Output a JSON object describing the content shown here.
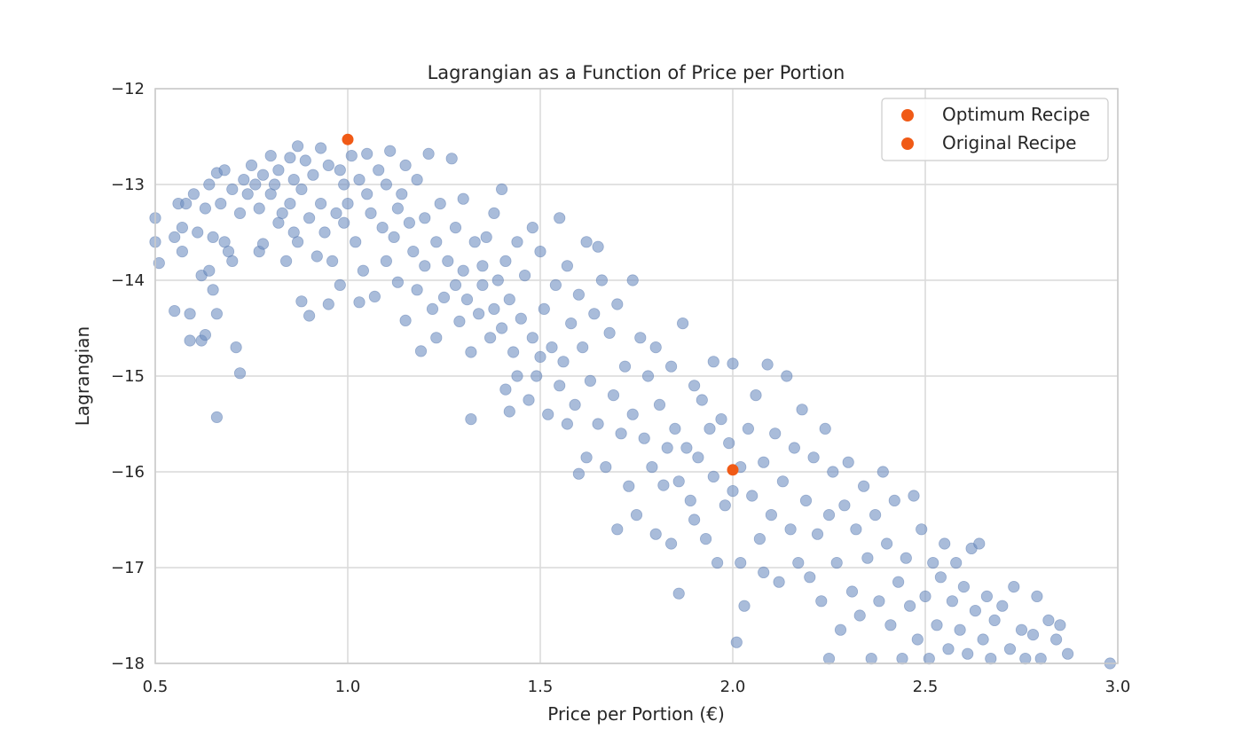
{
  "chart_data": {
    "type": "scatter",
    "title": "Lagrangian as a Function of Price per Portion",
    "xlabel": "Price per Portion (€)",
    "ylabel": "Lagrangian",
    "xlim": [
      0.5,
      3.0
    ],
    "ylim": [
      -18,
      -12
    ],
    "xticks": [
      "0.5",
      "1.0",
      "1.5",
      "2.0",
      "2.5",
      "3.0"
    ],
    "yticks": [
      "−12",
      "−13",
      "−14",
      "−15",
      "−16",
      "−17",
      "−18"
    ],
    "grid": true,
    "legend_position": "top-right",
    "colors": {
      "cloud": "#6f8fc2",
      "highlight": "#f05a16",
      "grid": "#d9d9d9",
      "frame": "#cccccc"
    },
    "series": [
      {
        "name": "Optimum Recipe",
        "x": [
          1.0
        ],
        "y": [
          -12.53
        ]
      },
      {
        "name": "Original Recipe",
        "x": [
          2.0
        ],
        "y": [
          -15.98
        ]
      }
    ],
    "cloud": {
      "points": [
        [
          0.5,
          -13.35
        ],
        [
          0.5,
          -13.6
        ],
        [
          0.51,
          -13.82
        ],
        [
          0.55,
          -13.55
        ],
        [
          0.55,
          -14.32
        ],
        [
          0.56,
          -13.2
        ],
        [
          0.57,
          -13.45
        ],
        [
          0.57,
          -13.7
        ],
        [
          0.58,
          -13.2
        ],
        [
          0.59,
          -14.35
        ],
        [
          0.59,
          -14.63
        ],
        [
          0.6,
          -13.1
        ],
        [
          0.61,
          -13.5
        ],
        [
          0.62,
          -14.63
        ],
        [
          0.62,
          -13.95
        ],
        [
          0.63,
          -13.25
        ],
        [
          0.63,
          -14.57
        ],
        [
          0.64,
          -13.0
        ],
        [
          0.64,
          -13.9
        ],
        [
          0.65,
          -14.1
        ],
        [
          0.65,
          -13.55
        ],
        [
          0.66,
          -12.88
        ],
        [
          0.66,
          -14.35
        ],
        [
          0.66,
          -15.43
        ],
        [
          0.67,
          -13.2
        ],
        [
          0.68,
          -12.85
        ],
        [
          0.68,
          -13.6
        ],
        [
          0.69,
          -13.7
        ],
        [
          0.7,
          -13.05
        ],
        [
          0.7,
          -13.8
        ],
        [
          0.71,
          -14.7
        ],
        [
          0.72,
          -14.97
        ],
        [
          0.72,
          -13.3
        ],
        [
          0.73,
          -12.95
        ],
        [
          0.74,
          -13.1
        ],
        [
          0.75,
          -12.8
        ],
        [
          0.76,
          -13.0
        ],
        [
          0.77,
          -13.7
        ],
        [
          0.77,
          -13.25
        ],
        [
          0.78,
          -13.62
        ],
        [
          0.78,
          -12.9
        ],
        [
          0.8,
          -12.7
        ],
        [
          0.8,
          -13.1
        ],
        [
          0.81,
          -13.0
        ],
        [
          0.82,
          -13.4
        ],
        [
          0.82,
          -12.85
        ],
        [
          0.83,
          -13.3
        ],
        [
          0.84,
          -13.8
        ],
        [
          0.85,
          -12.72
        ],
        [
          0.85,
          -13.2
        ],
        [
          0.86,
          -13.5
        ],
        [
          0.86,
          -12.95
        ],
        [
          0.87,
          -13.6
        ],
        [
          0.87,
          -12.6
        ],
        [
          0.88,
          -14.22
        ],
        [
          0.88,
          -13.05
        ],
        [
          0.89,
          -12.75
        ],
        [
          0.9,
          -14.37
        ],
        [
          0.9,
          -13.35
        ],
        [
          0.91,
          -12.9
        ],
        [
          0.92,
          -13.75
        ],
        [
          0.93,
          -13.2
        ],
        [
          0.93,
          -12.62
        ],
        [
          0.94,
          -13.5
        ],
        [
          0.95,
          -14.25
        ],
        [
          0.95,
          -12.8
        ],
        [
          0.96,
          -13.8
        ],
        [
          0.97,
          -13.3
        ],
        [
          0.98,
          -14.05
        ],
        [
          0.98,
          -12.85
        ],
        [
          0.99,
          -13.4
        ],
        [
          0.99,
          -13.0
        ],
        [
          1.0,
          -13.2
        ],
        [
          1.01,
          -12.7
        ],
        [
          1.02,
          -13.6
        ],
        [
          1.03,
          -14.23
        ],
        [
          1.03,
          -12.95
        ],
        [
          1.04,
          -13.9
        ],
        [
          1.05,
          -13.1
        ],
        [
          1.05,
          -12.68
        ],
        [
          1.06,
          -13.3
        ],
        [
          1.07,
          -14.17
        ],
        [
          1.08,
          -12.85
        ],
        [
          1.09,
          -13.45
        ],
        [
          1.1,
          -13.0
        ],
        [
          1.1,
          -13.8
        ],
        [
          1.11,
          -12.65
        ],
        [
          1.12,
          -13.55
        ],
        [
          1.13,
          -14.02
        ],
        [
          1.13,
          -13.25
        ],
        [
          1.14,
          -13.1
        ],
        [
          1.15,
          -12.8
        ],
        [
          1.15,
          -14.42
        ],
        [
          1.16,
          -13.4
        ],
        [
          1.17,
          -13.7
        ],
        [
          1.18,
          -12.95
        ],
        [
          1.18,
          -14.1
        ],
        [
          1.19,
          -14.74
        ],
        [
          1.2,
          -13.35
        ],
        [
          1.2,
          -13.85
        ],
        [
          1.21,
          -12.68
        ],
        [
          1.22,
          -14.3
        ],
        [
          1.23,
          -14.6
        ],
        [
          1.23,
          -13.6
        ],
        [
          1.24,
          -13.2
        ],
        [
          1.25,
          -14.18
        ],
        [
          1.26,
          -13.8
        ],
        [
          1.27,
          -12.73
        ],
        [
          1.28,
          -14.05
        ],
        [
          1.28,
          -13.45
        ],
        [
          1.29,
          -14.43
        ],
        [
          1.3,
          -13.15
        ],
        [
          1.3,
          -13.9
        ],
        [
          1.31,
          -14.2
        ],
        [
          1.32,
          -14.75
        ],
        [
          1.32,
          -15.45
        ],
        [
          1.33,
          -13.6
        ],
        [
          1.34,
          -14.35
        ],
        [
          1.35,
          -13.85
        ],
        [
          1.35,
          -14.05
        ],
        [
          1.36,
          -13.55
        ],
        [
          1.37,
          -14.6
        ],
        [
          1.38,
          -13.3
        ],
        [
          1.38,
          -14.3
        ],
        [
          1.39,
          -14.0
        ],
        [
          1.4,
          -13.05
        ],
        [
          1.4,
          -14.5
        ],
        [
          1.41,
          -15.14
        ],
        [
          1.41,
          -13.8
        ],
        [
          1.42,
          -14.2
        ],
        [
          1.42,
          -15.37
        ],
        [
          1.43,
          -14.75
        ],
        [
          1.44,
          -13.6
        ],
        [
          1.44,
          -15.0
        ],
        [
          1.45,
          -14.4
        ],
        [
          1.46,
          -13.95
        ],
        [
          1.47,
          -15.25
        ],
        [
          1.48,
          -14.6
        ],
        [
          1.48,
          -13.45
        ],
        [
          1.49,
          -15.0
        ],
        [
          1.5,
          -14.8
        ],
        [
          1.5,
          -13.7
        ],
        [
          1.51,
          -14.3
        ],
        [
          1.52,
          -15.4
        ],
        [
          1.53,
          -14.7
        ],
        [
          1.54,
          -14.05
        ],
        [
          1.55,
          -15.1
        ],
        [
          1.55,
          -13.35
        ],
        [
          1.56,
          -14.85
        ],
        [
          1.57,
          -15.5
        ],
        [
          1.57,
          -13.85
        ],
        [
          1.58,
          -14.45
        ],
        [
          1.59,
          -15.3
        ],
        [
          1.6,
          -16.02
        ],
        [
          1.6,
          -14.15
        ],
        [
          1.61,
          -14.7
        ],
        [
          1.62,
          -15.85
        ],
        [
          1.62,
          -13.6
        ],
        [
          1.63,
          -15.05
        ],
        [
          1.64,
          -14.35
        ],
        [
          1.65,
          -15.5
        ],
        [
          1.65,
          -13.65
        ],
        [
          1.66,
          -14.0
        ],
        [
          1.67,
          -15.95
        ],
        [
          1.68,
          -14.55
        ],
        [
          1.69,
          -15.2
        ],
        [
          1.7,
          -14.25
        ],
        [
          1.7,
          -16.6
        ],
        [
          1.71,
          -15.6
        ],
        [
          1.72,
          -14.9
        ],
        [
          1.73,
          -16.15
        ],
        [
          1.74,
          -14.0
        ],
        [
          1.74,
          -15.4
        ],
        [
          1.75,
          -16.45
        ],
        [
          1.76,
          -14.6
        ],
        [
          1.77,
          -15.65
        ],
        [
          1.78,
          -15.0
        ],
        [
          1.79,
          -15.95
        ],
        [
          1.8,
          -16.65
        ],
        [
          1.8,
          -14.7
        ],
        [
          1.81,
          -15.3
        ],
        [
          1.82,
          -16.14
        ],
        [
          1.83,
          -15.75
        ],
        [
          1.84,
          -16.75
        ],
        [
          1.84,
          -14.9
        ],
        [
          1.85,
          -15.55
        ],
        [
          1.86,
          -17.27
        ],
        [
          1.86,
          -16.1
        ],
        [
          1.87,
          -14.45
        ],
        [
          1.88,
          -15.75
        ],
        [
          1.89,
          -16.3
        ],
        [
          1.9,
          -15.1
        ],
        [
          1.9,
          -16.5
        ],
        [
          1.91,
          -15.85
        ],
        [
          1.92,
          -15.25
        ],
        [
          1.93,
          -16.7
        ],
        [
          1.94,
          -15.55
        ],
        [
          1.95,
          -16.05
        ],
        [
          1.95,
          -14.85
        ],
        [
          1.96,
          -16.95
        ],
        [
          1.97,
          -15.45
        ],
        [
          1.98,
          -16.35
        ],
        [
          1.99,
          -15.7
        ],
        [
          2.0,
          -14.87
        ],
        [
          2.0,
          -16.2
        ],
        [
          2.01,
          -17.78
        ],
        [
          2.02,
          -15.95
        ],
        [
          2.02,
          -16.95
        ],
        [
          2.03,
          -17.4
        ],
        [
          2.04,
          -15.55
        ],
        [
          2.05,
          -16.25
        ],
        [
          2.06,
          -15.2
        ],
        [
          2.07,
          -16.7
        ],
        [
          2.08,
          -15.9
        ],
        [
          2.08,
          -17.05
        ],
        [
          2.09,
          -14.88
        ],
        [
          2.1,
          -16.45
        ],
        [
          2.11,
          -15.6
        ],
        [
          2.12,
          -17.15
        ],
        [
          2.13,
          -16.1
        ],
        [
          2.14,
          -15.0
        ],
        [
          2.15,
          -16.6
        ],
        [
          2.16,
          -15.75
        ],
        [
          2.17,
          -16.95
        ],
        [
          2.18,
          -15.35
        ],
        [
          2.19,
          -16.3
        ],
        [
          2.2,
          -17.1
        ],
        [
          2.21,
          -15.85
        ],
        [
          2.22,
          -16.65
        ],
        [
          2.23,
          -17.35
        ],
        [
          2.24,
          -15.55
        ],
        [
          2.25,
          -16.45
        ],
        [
          2.25,
          -17.95
        ],
        [
          2.26,
          -16.0
        ],
        [
          2.27,
          -16.95
        ],
        [
          2.28,
          -17.65
        ],
        [
          2.29,
          -16.35
        ],
        [
          2.3,
          -15.9
        ],
        [
          2.31,
          -17.25
        ],
        [
          2.32,
          -16.6
        ],
        [
          2.33,
          -17.5
        ],
        [
          2.34,
          -16.15
        ],
        [
          2.35,
          -16.9
        ],
        [
          2.36,
          -17.95
        ],
        [
          2.37,
          -16.45
        ],
        [
          2.38,
          -17.35
        ],
        [
          2.39,
          -16.0
        ],
        [
          2.4,
          -16.75
        ],
        [
          2.41,
          -17.6
        ],
        [
          2.42,
          -16.3
        ],
        [
          2.43,
          -17.15
        ],
        [
          2.44,
          -17.95
        ],
        [
          2.45,
          -16.9
        ],
        [
          2.46,
          -17.4
        ],
        [
          2.47,
          -16.25
        ],
        [
          2.48,
          -17.75
        ],
        [
          2.49,
          -16.6
        ],
        [
          2.5,
          -17.3
        ],
        [
          2.51,
          -17.95
        ],
        [
          2.52,
          -16.95
        ],
        [
          2.53,
          -17.6
        ],
        [
          2.54,
          -17.1
        ],
        [
          2.55,
          -16.75
        ],
        [
          2.56,
          -17.85
        ],
        [
          2.57,
          -17.35
        ],
        [
          2.58,
          -16.95
        ],
        [
          2.59,
          -17.65
        ],
        [
          2.6,
          -17.2
        ],
        [
          2.61,
          -17.9
        ],
        [
          2.62,
          -16.8
        ],
        [
          2.63,
          -17.45
        ],
        [
          2.64,
          -16.75
        ],
        [
          2.65,
          -17.75
        ],
        [
          2.66,
          -17.3
        ],
        [
          2.67,
          -17.95
        ],
        [
          2.68,
          -17.55
        ],
        [
          2.7,
          -17.4
        ],
        [
          2.72,
          -17.85
        ],
        [
          2.73,
          -17.2
        ],
        [
          2.75,
          -17.65
        ],
        [
          2.76,
          -17.95
        ],
        [
          2.78,
          -17.7
        ],
        [
          2.79,
          -17.3
        ],
        [
          2.8,
          -17.95
        ],
        [
          2.82,
          -17.55
        ],
        [
          2.84,
          -17.75
        ],
        [
          2.85,
          -17.6
        ],
        [
          2.87,
          -17.9
        ],
        [
          2.98,
          -18.0
        ]
      ]
    }
  }
}
